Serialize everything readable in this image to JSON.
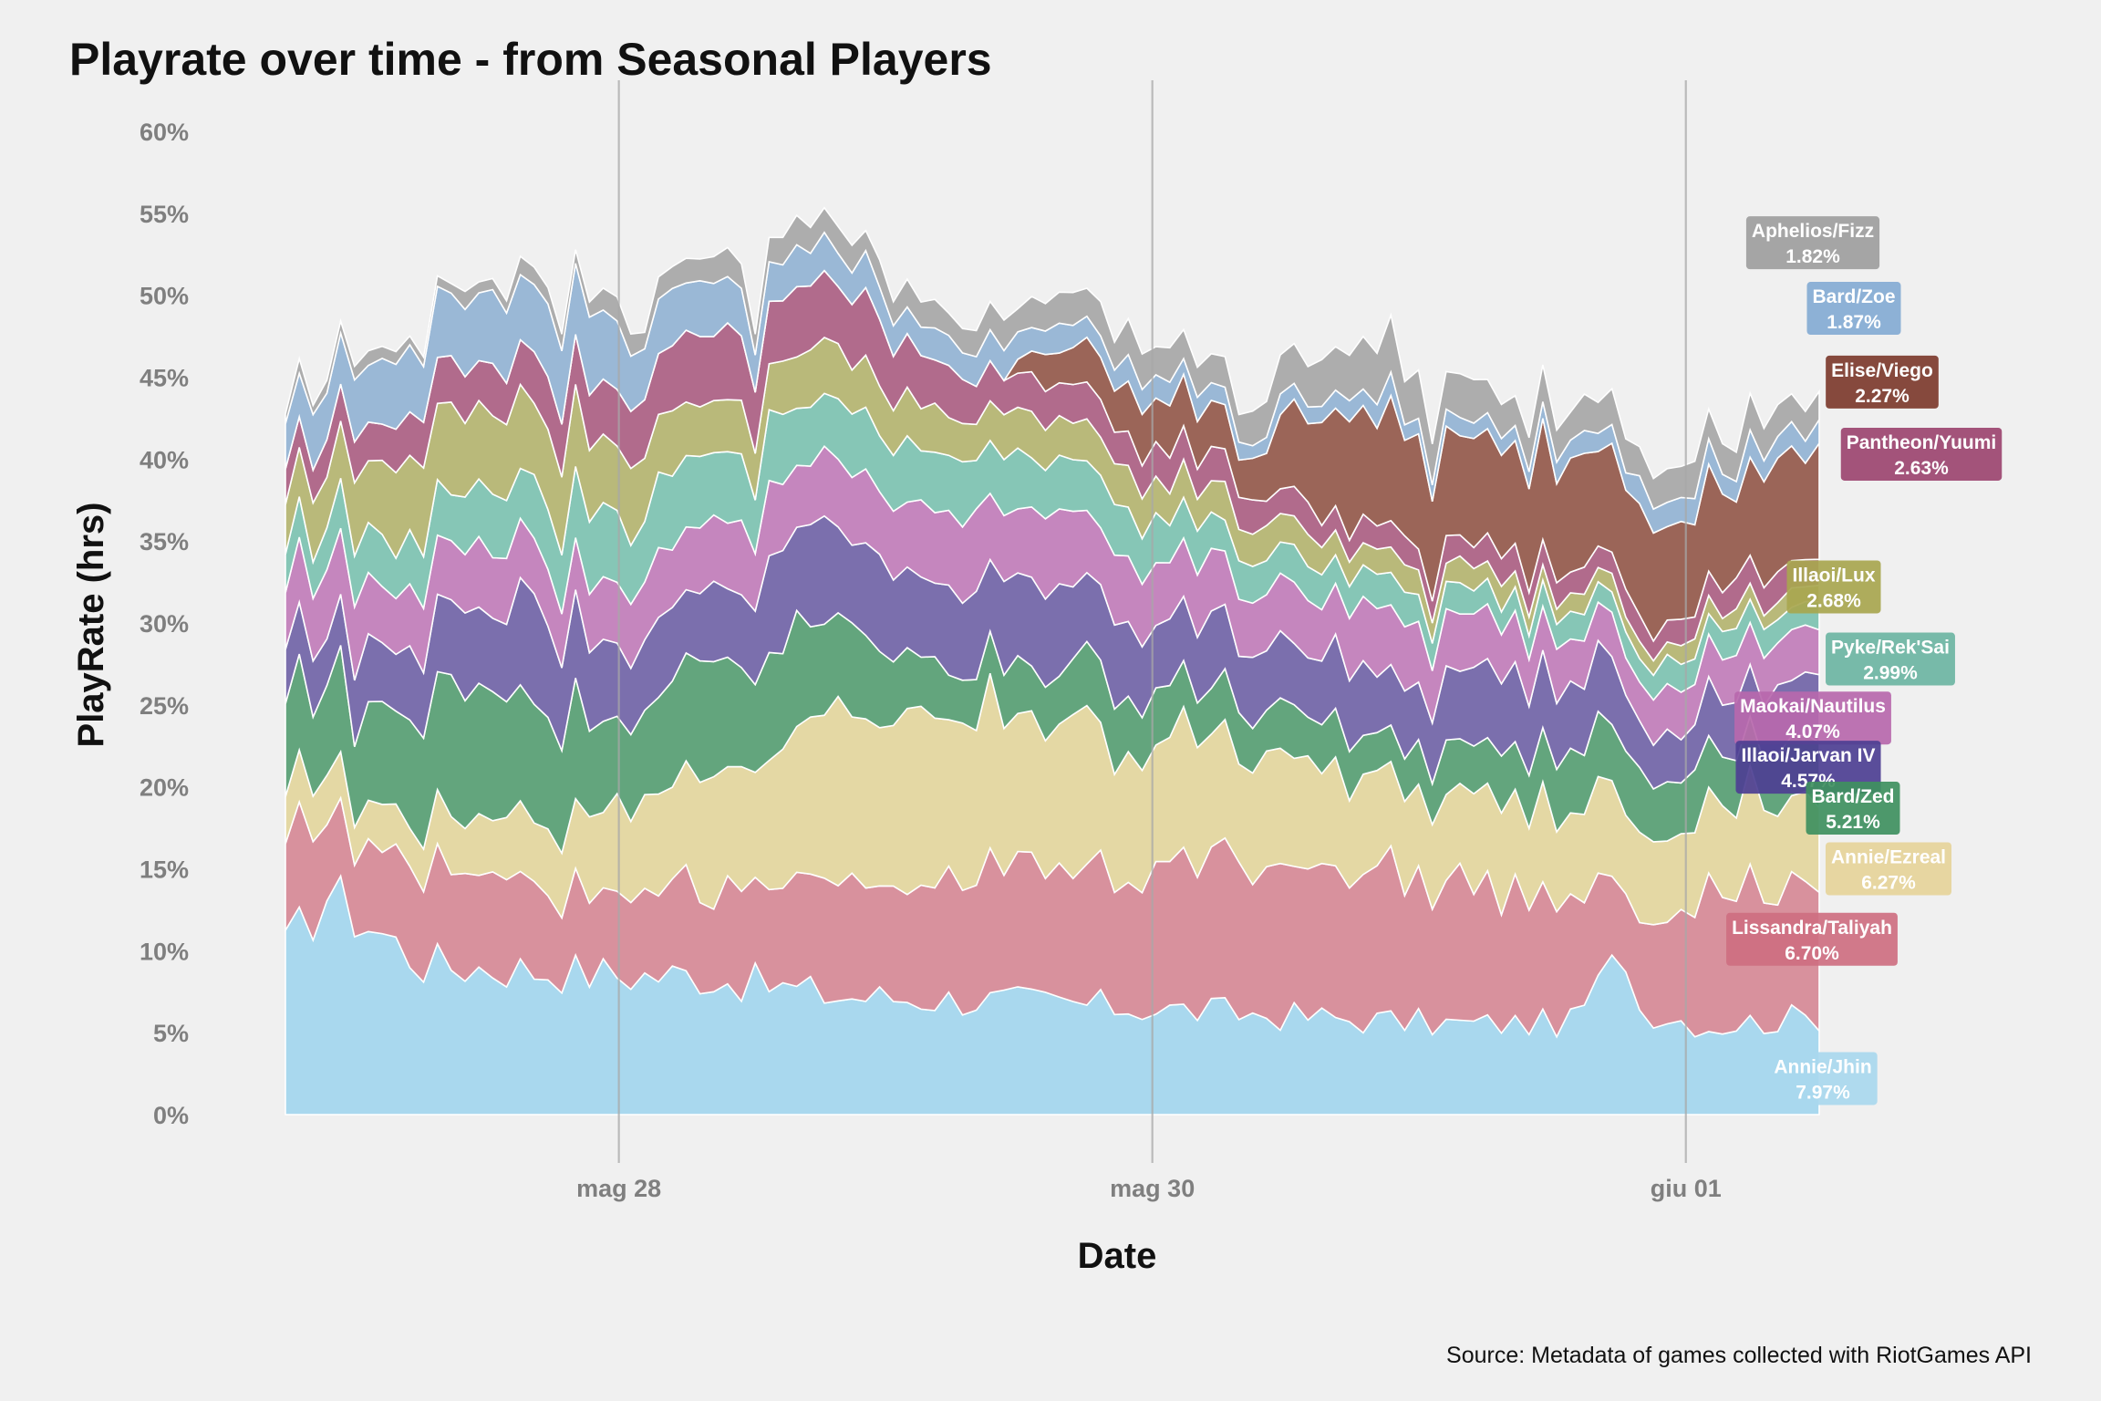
{
  "chart_data": {
    "type": "area",
    "stacked": true,
    "title": "Playrate over time - from Seasonal Players",
    "xlabel": "Date",
    "ylabel": "PlayRate (hrs)",
    "source": "Source: Metadata of games collected with RiotGames API",
    "ylim": [
      0,
      60
    ],
    "y_ticks": [
      "0%",
      "5%",
      "10%",
      "15%",
      "20%",
      "25%",
      "30%",
      "35%",
      "40%",
      "45%",
      "50%",
      "55%",
      "60%"
    ],
    "x_range": [
      "2022-05-26 18:00",
      "2022-06-01 12:00"
    ],
    "x_ticks": [
      {
        "label": "mag 28",
        "date": "2022-05-28"
      },
      {
        "label": "mag 30",
        "date": "2022-05-30"
      },
      {
        "label": "giu 01",
        "date": "2022-06-01"
      }
    ],
    "grid": "vertical-major-only",
    "point_count": 112,
    "series": [
      {
        "name": "Annie/Jhin",
        "value_label": "7.97%",
        "color": "#a9d8ee",
        "label_color": "#a9d8ee",
        "keyframes": [
          [
            0,
            10.0
          ],
          [
            3,
            13.5
          ],
          [
            10,
            9.2
          ],
          [
            25,
            8.5
          ],
          [
            30,
            8.5
          ],
          [
            40,
            7.2
          ],
          [
            50,
            7.0
          ],
          [
            62,
            6.5
          ],
          [
            75,
            5.9
          ],
          [
            85,
            5.5
          ],
          [
            93,
            5.6
          ],
          [
            97,
            10.0
          ],
          [
            98,
            6.5
          ],
          [
            103,
            5.4
          ],
          [
            111,
            6.0
          ]
        ]
      },
      {
        "name": "Lissandra/Taliyah",
        "value_label": "6.70%",
        "color": "#d8919d",
        "label_color": "#ce6f81",
        "keyframes": [
          [
            0,
            6.0
          ],
          [
            5,
            5.0
          ],
          [
            12,
            6.5
          ],
          [
            20,
            5.3
          ],
          [
            25,
            5.0
          ],
          [
            30,
            5.8
          ],
          [
            40,
            6.8
          ],
          [
            50,
            8.0
          ],
          [
            58,
            8.2
          ],
          [
            62,
            8.5
          ],
          [
            70,
            9.0
          ],
          [
            80,
            8.8
          ],
          [
            90,
            8.5
          ],
          [
            97,
            4.5
          ],
          [
            103,
            8.5
          ],
          [
            111,
            8.0
          ]
        ]
      },
      {
        "name": "Annie/Ezreal",
        "value_label": "6.27%",
        "color": "#e4d8a4",
        "label_color": "#e6d49a",
        "keyframes": [
          [
            0,
            3.0
          ],
          [
            8,
            2.5
          ],
          [
            15,
            3.5
          ],
          [
            25,
            5.5
          ],
          [
            30,
            7.0
          ],
          [
            37,
            8.0
          ],
          [
            40,
            10.5
          ],
          [
            50,
            9.5
          ],
          [
            58,
            8.8
          ],
          [
            65,
            7.5
          ],
          [
            70,
            6.5
          ],
          [
            80,
            6.0
          ],
          [
            90,
            5.5
          ],
          [
            100,
            5.0
          ],
          [
            111,
            5.5
          ]
        ]
      },
      {
        "name": "Bard/Zed",
        "value_label": "5.21%",
        "color": "#63a57d",
        "label_color": "#3f9060",
        "keyframes": [
          [
            0,
            5.5
          ],
          [
            8,
            6.0
          ],
          [
            12,
            8.0
          ],
          [
            20,
            7.0
          ],
          [
            25,
            5.0
          ],
          [
            30,
            6.5
          ],
          [
            40,
            6.0
          ],
          [
            45,
            3.5
          ],
          [
            50,
            3.0
          ],
          [
            60,
            3.5
          ],
          [
            70,
            3.0
          ],
          [
            80,
            2.5
          ],
          [
            90,
            3.5
          ],
          [
            100,
            3.5
          ],
          [
            111,
            3.5
          ]
        ]
      },
      {
        "name": "Illaoi/Jarvan IV",
        "value_label": "4.57%",
        "color": "#7b6fad",
        "label_color": "#4d3f93",
        "keyframes": [
          [
            0,
            3.0
          ],
          [
            10,
            4.0
          ],
          [
            18,
            6.0
          ],
          [
            25,
            4.5
          ],
          [
            30,
            4.5
          ],
          [
            38,
            6.0
          ],
          [
            45,
            5.0
          ],
          [
            55,
            5.0
          ],
          [
            62,
            4.5
          ],
          [
            70,
            4.0
          ],
          [
            80,
            4.0
          ],
          [
            90,
            4.5
          ],
          [
            100,
            3.0
          ],
          [
            111,
            4.0
          ]
        ]
      },
      {
        "name": "Maokai/Nautilus",
        "value_label": "4.07%",
        "color": "#c586be",
        "label_color": "#b768ad",
        "keyframes": [
          [
            0,
            4.0
          ],
          [
            12,
            3.8
          ],
          [
            22,
            3.5
          ],
          [
            30,
            4.0
          ],
          [
            40,
            4.2
          ],
          [
            50,
            4.5
          ],
          [
            60,
            4.0
          ],
          [
            70,
            3.5
          ],
          [
            80,
            3.8
          ],
          [
            90,
            3.0
          ],
          [
            100,
            2.5
          ],
          [
            111,
            3.0
          ]
        ]
      },
      {
        "name": "Pyke/Rek'Sai",
        "value_label": "2.99%",
        "color": "#86c6b6",
        "label_color": "#6cb5a3",
        "keyframes": [
          [
            0,
            2.5
          ],
          [
            10,
            3.0
          ],
          [
            22,
            4.0
          ],
          [
            30,
            4.0
          ],
          [
            40,
            3.5
          ],
          [
            50,
            3.5
          ],
          [
            60,
            3.0
          ],
          [
            70,
            2.0
          ],
          [
            80,
            2.0
          ],
          [
            90,
            1.5
          ],
          [
            100,
            1.5
          ],
          [
            111,
            1.5
          ]
        ]
      },
      {
        "name": "Illaoi/Lux",
        "value_label": "2.68%",
        "color": "#b9b97a",
        "label_color": "#a8a64f",
        "keyframes": [
          [
            0,
            3.0
          ],
          [
            10,
            5.0
          ],
          [
            22,
            5.0
          ],
          [
            30,
            3.5
          ],
          [
            40,
            3.0
          ],
          [
            50,
            2.5
          ],
          [
            60,
            2.5
          ],
          [
            70,
            2.0
          ],
          [
            80,
            1.5
          ],
          [
            90,
            1.2
          ],
          [
            100,
            1.0
          ],
          [
            111,
            1.0
          ]
        ]
      },
      {
        "name": "Pantheon/Yuumi",
        "value_label": "2.63%",
        "color": "#b16b8c",
        "label_color": "#9c4570",
        "keyframes": [
          [
            0,
            2.0
          ],
          [
            10,
            2.5
          ],
          [
            22,
            3.5
          ],
          [
            30,
            4.5
          ],
          [
            40,
            4.0
          ],
          [
            50,
            2.5
          ],
          [
            60,
            2.0
          ],
          [
            70,
            1.8
          ],
          [
            80,
            1.5
          ],
          [
            90,
            1.5
          ],
          [
            100,
            1.5
          ],
          [
            111,
            1.8
          ]
        ]
      },
      {
        "name": "Elise/Viego",
        "value_label": "2.27%",
        "color": "#9b6558",
        "label_color": "#7d3b2e",
        "keyframes": [
          [
            0,
            0.0
          ],
          [
            40,
            0.0
          ],
          [
            52,
            0.0
          ],
          [
            55,
            2.0
          ],
          [
            62,
            3.0
          ],
          [
            70,
            2.5
          ],
          [
            75,
            6.0
          ],
          [
            80,
            7.0
          ],
          [
            88,
            6.0
          ],
          [
            92,
            6.5
          ],
          [
            100,
            6.0
          ],
          [
            105,
            5.5
          ],
          [
            111,
            6.5
          ]
        ]
      },
      {
        "name": "Bard/Zoe",
        "value_label": "1.87%",
        "color": "#9ab8d6",
        "label_color": "#84abd4",
        "keyframes": [
          [
            0,
            3.0
          ],
          [
            10,
            4.0
          ],
          [
            20,
            4.5
          ],
          [
            30,
            3.0
          ],
          [
            40,
            2.0
          ],
          [
            50,
            1.8
          ],
          [
            60,
            1.5
          ],
          [
            70,
            1.0
          ],
          [
            80,
            1.2
          ],
          [
            90,
            1.0
          ],
          [
            100,
            1.5
          ],
          [
            111,
            1.5
          ]
        ]
      },
      {
        "name": "Aphelios/Fizz",
        "value_label": "1.82%",
        "color": "#adadad",
        "label_color": "#9e9e9e",
        "keyframes": [
          [
            0,
            0.6
          ],
          [
            10,
            0.8
          ],
          [
            20,
            1.0
          ],
          [
            30,
            1.5
          ],
          [
            40,
            1.5
          ],
          [
            50,
            1.5
          ],
          [
            60,
            2.0
          ],
          [
            70,
            2.0
          ],
          [
            80,
            3.0
          ],
          [
            90,
            2.0
          ],
          [
            100,
            2.0
          ],
          [
            111,
            2.0
          ]
        ]
      }
    ],
    "end_labels": [
      {
        "series": "Aphelios/Fizz",
        "y": 53.2
      },
      {
        "series": "Bard/Zoe",
        "y": 49.2
      },
      {
        "series": "Elise/Viego",
        "y": 44.7
      },
      {
        "series": "Pantheon/Yuumi",
        "y": 40.3
      },
      {
        "series": "Illaoi/Lux",
        "y": 32.2
      },
      {
        "series": "Pyke/Rek'Sai",
        "y": 27.8
      },
      {
        "series": "Maokai/Nautilus",
        "y": 24.2
      },
      {
        "series": "Illaoi/Jarvan IV",
        "y": 21.2
      },
      {
        "series": "Bard/Zed",
        "y": 18.7
      },
      {
        "series": "Annie/Ezreal",
        "y": 15.0
      },
      {
        "series": "Lissandra/Taliyah",
        "y": 10.7
      },
      {
        "series": "Annie/Jhin",
        "y": 2.2
      }
    ]
  }
}
